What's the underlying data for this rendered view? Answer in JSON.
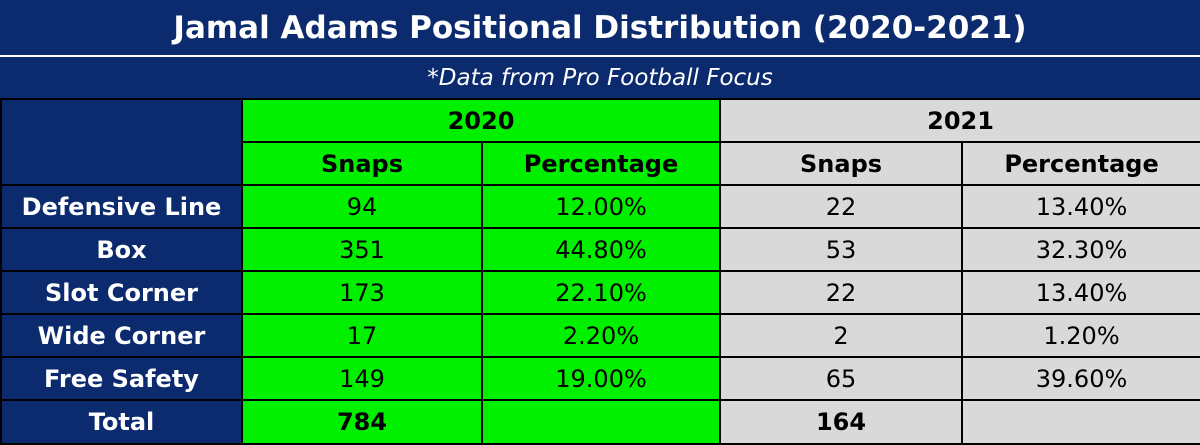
{
  "chart_data": {
    "type": "table",
    "title": "Jamal Adams Positional Distribution (2020-2021)",
    "subtitle": "*Data from Pro Football Focus",
    "years": [
      "2020",
      "2021"
    ],
    "columns": [
      "Snaps",
      "Percentage",
      "Snaps",
      "Percentage"
    ],
    "rows": [
      {
        "label": "Defensive Line",
        "cells": [
          "94",
          "12.00%",
          "22",
          "13.40%"
        ]
      },
      {
        "label": "Box",
        "cells": [
          "351",
          "44.80%",
          "53",
          "32.30%"
        ]
      },
      {
        "label": "Slot Corner",
        "cells": [
          "173",
          "22.10%",
          "22",
          "13.40%"
        ]
      },
      {
        "label": "Wide Corner",
        "cells": [
          "17",
          "2.20%",
          "2",
          "1.20%"
        ]
      },
      {
        "label": "Free Safety",
        "cells": [
          "149",
          "19.00%",
          "65",
          "39.60%"
        ]
      }
    ],
    "total": {
      "label": "Total",
      "cells": [
        "784",
        "",
        "164",
        ""
      ]
    },
    "colors": {
      "header_navy": "#0b2b6e",
      "year_2020_green": "#00f000",
      "year_2021_gray": "#d9d9d9"
    }
  }
}
